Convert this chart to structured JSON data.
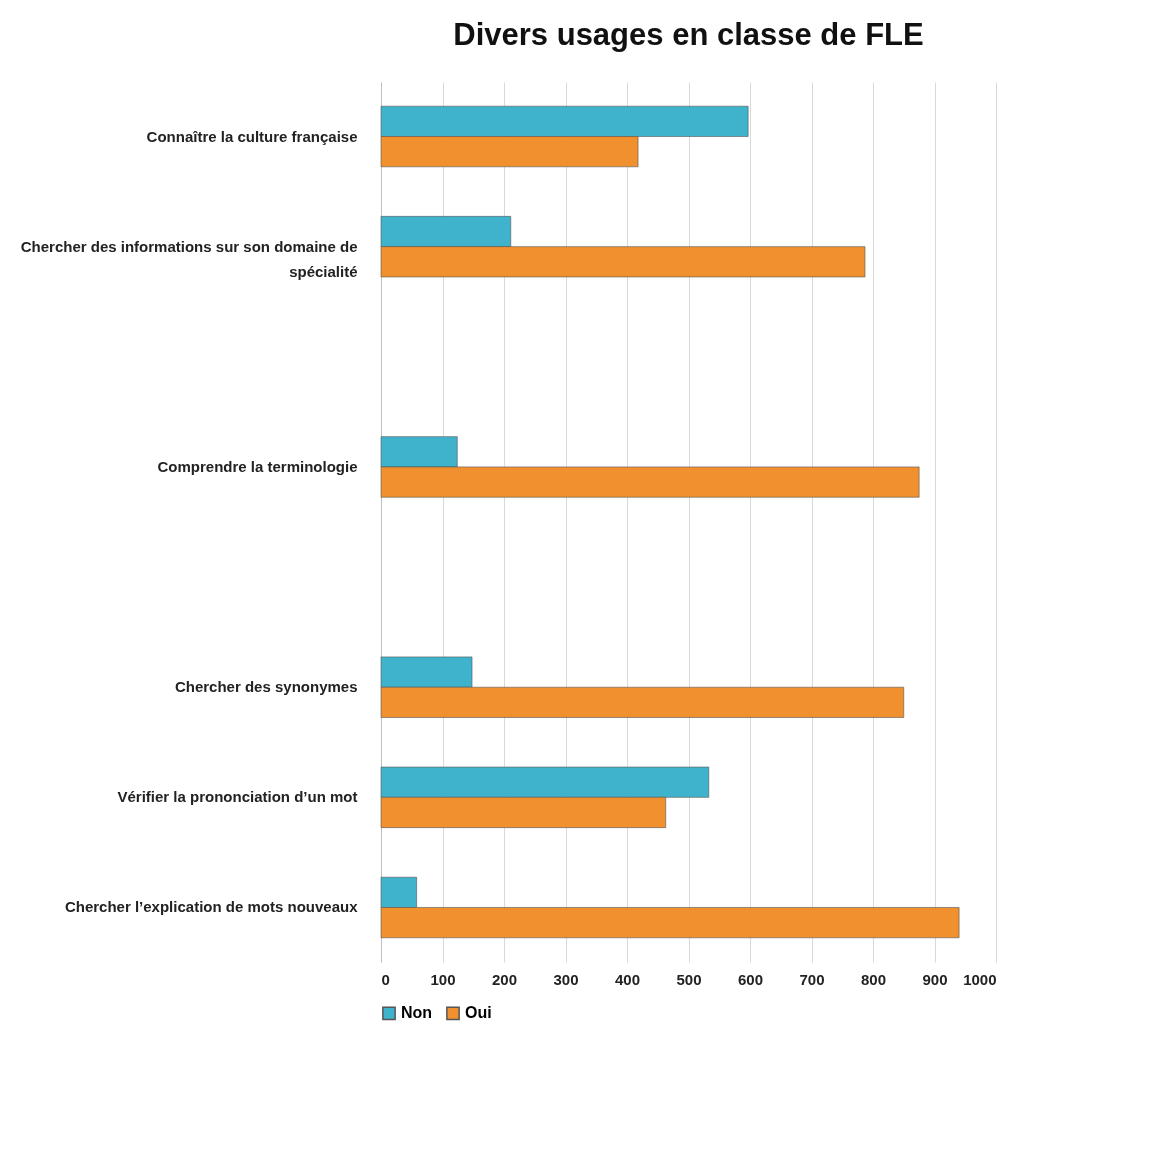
{
  "chart_data": {
    "type": "bar",
    "orientation": "horizontal",
    "title": "Divers usages en classe de FLE",
    "categories": [
      "Connaître la culture française",
      "Chercher des informations sur son domaine de spécialité",
      null,
      "Comprendre la terminologie",
      null,
      "Chercher des synonymes",
      "Vérifier la prononciation d’un mot",
      "Chercher l’explication de mots nouveaux"
    ],
    "series": [
      {
        "name": "Non",
        "color": "#3fb2cc",
        "values": [
          597,
          211,
          null,
          124,
          null,
          148,
          533,
          58
        ]
      },
      {
        "name": "Oui",
        "color": "#f0902e",
        "values": [
          418,
          787,
          null,
          875,
          null,
          850,
          463,
          940
        ]
      }
    ],
    "xlim": [
      0,
      1000
    ],
    "xticks": [
      0,
      100,
      200,
      300,
      400,
      500,
      600,
      700,
      800,
      900,
      1000
    ],
    "grid": "x",
    "legend": "bottom"
  }
}
